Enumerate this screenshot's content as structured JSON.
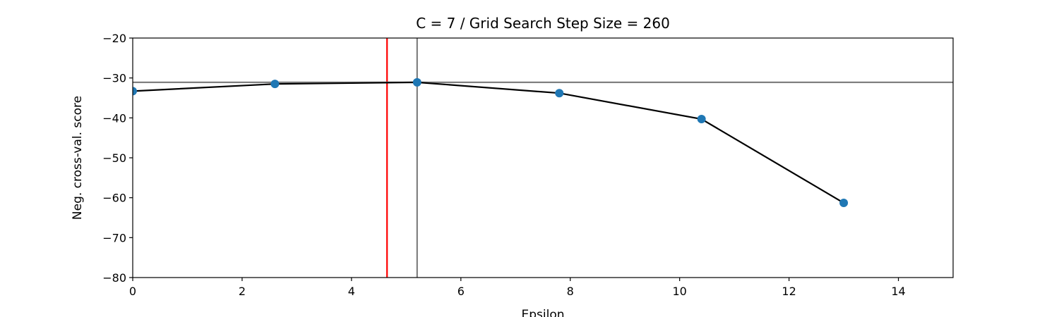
{
  "chart_data": {
    "type": "line",
    "title": "C = 7 / Grid Search Step Size = 260",
    "xlabel": "Epsilon",
    "ylabel": "Neg. cross-val. score",
    "xlim": [
      0,
      15
    ],
    "ylim": [
      -80,
      -20
    ],
    "x_ticks": [
      0,
      2,
      4,
      6,
      8,
      10,
      12,
      14
    ],
    "y_ticks": [
      -20,
      -30,
      -40,
      -50,
      -60,
      -70,
      -80
    ],
    "x_tick_labels": [
      "0",
      "2",
      "4",
      "6",
      "8",
      "10",
      "12",
      "14"
    ],
    "y_tick_labels": [
      "−20",
      "−30",
      "−40",
      "−50",
      "−60",
      "−70",
      "−80"
    ],
    "grid": false,
    "series": [
      {
        "x": [
          0,
          2.6,
          5.2,
          7.8,
          10.4,
          13.0
        ],
        "y": [
          -33.3,
          -31.5,
          -31.1,
          -33.8,
          -40.3,
          -61.3
        ],
        "line_color": "#000000",
        "marker_color": "#1f77b4"
      }
    ],
    "reference_lines": [
      {
        "orientation": "vertical",
        "x": 4.65,
        "color": "#ff0000"
      },
      {
        "orientation": "vertical",
        "x": 5.2,
        "color": "#808080"
      },
      {
        "orientation": "horizontal",
        "y": -31.1,
        "color": "#808080"
      }
    ]
  }
}
